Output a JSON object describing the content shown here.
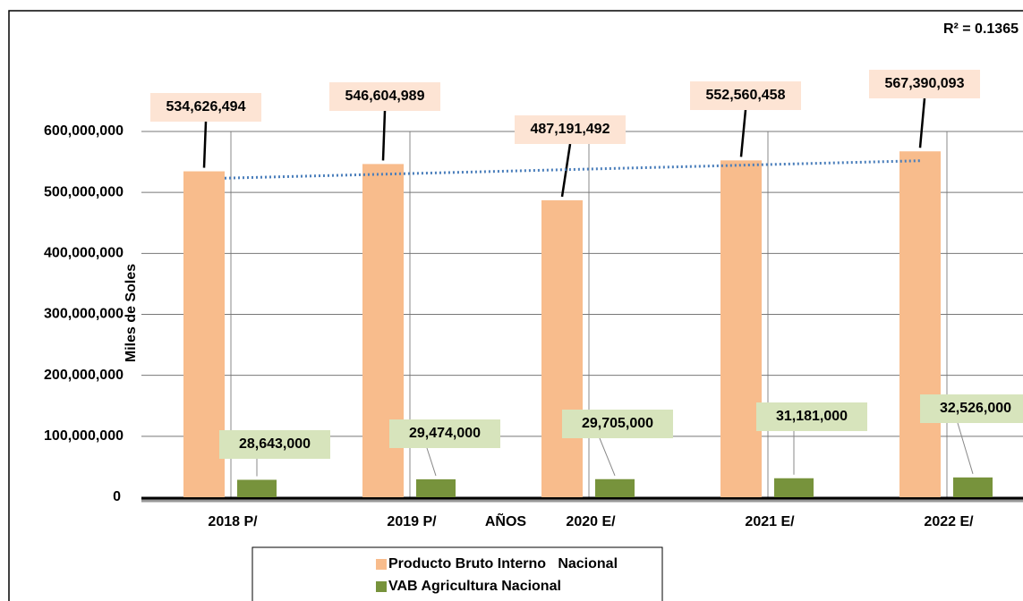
{
  "chart_data": {
    "type": "bar",
    "categories": [
      "2018 P/",
      "2019 P/",
      "2020 E/",
      "2021 E/",
      "2022 E/"
    ],
    "series": [
      {
        "name": "Producto Bruto Interno   Nacional",
        "color": "#f8bc8c",
        "values": [
          534626494,
          546604989,
          487191492,
          552560458,
          567390093
        ],
        "value_labels": [
          "534,626,494",
          "546,604,989",
          "487,191,492",
          "552,560,458",
          "567,390,093"
        ]
      },
      {
        "name": "VAB Agricultura Nacional",
        "color": "#77933c",
        "values": [
          28643000,
          29474000,
          29705000,
          31181000,
          32526000
        ],
        "value_labels": [
          "28,643,000",
          "29,474,000",
          "29,705,000",
          "31,181,000",
          "32,526,000"
        ]
      }
    ],
    "x_label": "AÑOS",
    "y_label": "Miles de Soles",
    "annotation": "R² = 0.1365",
    "trendline": "linear",
    "ylim": [
      0,
      600000000
    ],
    "yticks": [
      0,
      {
        "value": 100000000,
        "label": "100,000,000"
      },
      {
        "value": 200000000,
        "label": "200,000,000"
      },
      {
        "value": 300000000,
        "label": "300,000,000"
      },
      {
        "value": 400000000,
        "label": "400,000,000"
      },
      {
        "value": 500000000,
        "label": "500,000,000"
      },
      {
        "value": 600000000,
        "label": "600,000,000"
      }
    ],
    "grid": true,
    "legend": "bottom"
  }
}
